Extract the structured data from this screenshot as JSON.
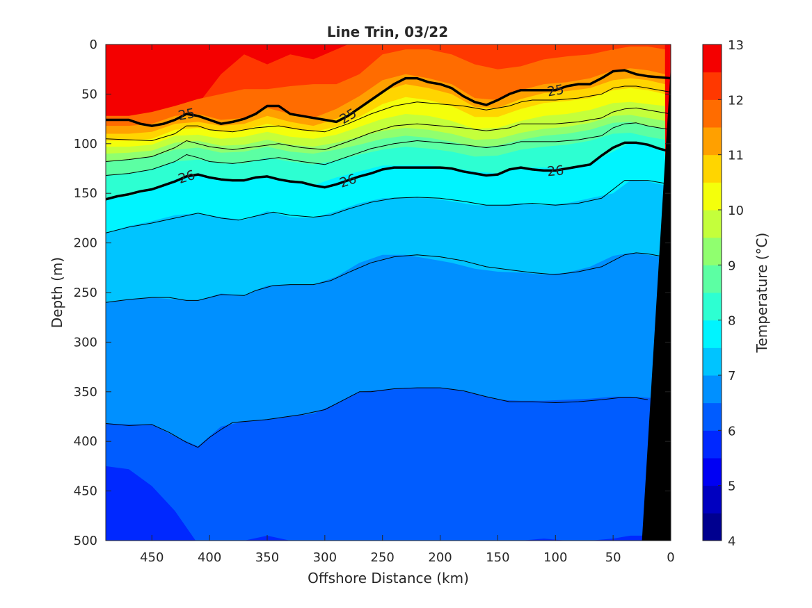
{
  "chart_data": {
    "type": "heatmap",
    "title": "Line Trin, 03/22",
    "xlabel": "Offshore Distance (km)",
    "ylabel": "Depth (m)",
    "colorbar_label": "Temperature (°C)",
    "x_range": [
      490,
      0
    ],
    "y_range": [
      0,
      500
    ],
    "x_reversed": true,
    "y_reversed": true,
    "x_ticks": [
      450,
      400,
      350,
      300,
      250,
      200,
      150,
      100,
      50,
      0
    ],
    "y_ticks": [
      0,
      50,
      100,
      150,
      200,
      250,
      300,
      350,
      400,
      450,
      500
    ],
    "colorbar_ticks": [
      4,
      5,
      6,
      7,
      8,
      9,
      10,
      11,
      12,
      13
    ],
    "colorbar_range": [
      4,
      13
    ],
    "level_step": 0.5,
    "colormap": [
      "#00008f",
      "#0000c0",
      "#0000f4",
      "#0028ff",
      "#005cff",
      "#0090ff",
      "#00c4ff",
      "#00f4ff",
      "#2dffd2",
      "#5cffa3",
      "#90ff6f",
      "#c4ff3b",
      "#f4ff0b",
      "#ffd500",
      "#ffa000",
      "#ff6c00",
      "#ff3800",
      "#f40000",
      "#bf0000"
    ],
    "grid": false,
    "shelf_color": "#000000",
    "isotherm_depths": {
      "x": [
        490,
        470,
        450,
        430,
        410,
        390,
        370,
        350,
        330,
        310,
        290,
        270,
        250,
        230,
        210,
        190,
        170,
        150,
        130,
        110,
        90,
        70,
        50,
        35,
        20,
        5
      ],
      "levels": [
        {
          "t": 12.0,
          "depth": [
            95,
            88,
            80,
            70,
            60,
            30,
            10,
            20,
            10,
            15,
            5,
            -5,
            -10,
            -20,
            -20,
            -20,
            -20,
            -25,
            -25,
            -25,
            -25,
            -25,
            -25,
            -20,
            -15,
            -10
          ]
        },
        {
          "t": 11.5,
          "depth": [
            72,
            72,
            68,
            62,
            55,
            50,
            45,
            45,
            42,
            40,
            40,
            30,
            10,
            5,
            5,
            10,
            20,
            25,
            22,
            15,
            12,
            10,
            5,
            2,
            2,
            5
          ]
        },
        {
          "t": 11.0,
          "depth": [
            82,
            82,
            80,
            72,
            70,
            76,
            74,
            64,
            70,
            74,
            65,
            52,
            36,
            30,
            34,
            40,
            54,
            56,
            46,
            40,
            38,
            34,
            26,
            24,
            26,
            30
          ]
        },
        {
          "t": 10.5,
          "depth": [
            90,
            90,
            88,
            80,
            78,
            82,
            80,
            72,
            78,
            82,
            75,
            63,
            47,
            40,
            44,
            50,
            63,
            64,
            55,
            49,
            47,
            44,
            36,
            34,
            36,
            40
          ]
        },
        {
          "t": 10.0,
          "depth": [
            97,
            97,
            95,
            86,
            84,
            88,
            86,
            80,
            85,
            88,
            83,
            73,
            60,
            53,
            56,
            62,
            73,
            73,
            65,
            59,
            57,
            54,
            46,
            44,
            46,
            50
          ]
        },
        {
          "t": 9.5,
          "depth": [
            103,
            103,
            101,
            92,
            91,
            95,
            93,
            88,
            93,
            95,
            91,
            83,
            75,
            70,
            72,
            77,
            85,
            84,
            77,
            72,
            70,
            66,
            59,
            58,
            60,
            62
          ]
        },
        {
          "t": 9.0,
          "depth": [
            110,
            109,
            107,
            99,
            97,
            102,
            101,
            96,
            101,
            103,
            99,
            93,
            87,
            84,
            86,
            90,
            96,
            95,
            89,
            85,
            83,
            79,
            72,
            71,
            74,
            77
          ]
        },
        {
          "t": 8.5,
          "depth": [
            118,
            116,
            113,
            106,
            104,
            109,
            108,
            103,
            108,
            110,
            106,
            101,
            95,
            92,
            94,
            98,
            103,
            102,
            96,
            92,
            90,
            86,
            79,
            78,
            82,
            85
          ]
        },
        {
          "t": 8.0,
          "depth": [
            132,
            130,
            126,
            118,
            116,
            120,
            120,
            114,
            118,
            121,
            117,
            111,
            106,
            103,
            105,
            108,
            113,
            112,
            106,
            103,
            101,
            97,
            90,
            89,
            93,
            96
          ]
        },
        {
          "t": 7.5,
          "depth": [
            156,
            153,
            146,
            136,
            131,
            136,
            137,
            132,
            137,
            142,
            134,
            128,
            122,
            122,
            122,
            124,
            128,
            130,
            124,
            124,
            124,
            120,
            108,
            99,
            100,
            106
          ]
        },
        {
          "t": 7.0,
          "depth": [
            190,
            183,
            178,
            172,
            170,
            174,
            177,
            168,
            174,
            175,
            168,
            160,
            155,
            154,
            155,
            158,
            162,
            162,
            160,
            162,
            160,
            155,
            150,
            137,
            138,
            142
          ]
        },
        {
          "t": 6.5,
          "depth": [
            260,
            257,
            255,
            257,
            258,
            251,
            253,
            243,
            242,
            242,
            234,
            220,
            212,
            212,
            216,
            220,
            226,
            229,
            230,
            232,
            230,
            224,
            213,
            210,
            212,
            215
          ]
        },
        {
          "t": 6.0,
          "depth": [
            382,
            383,
            383,
            395,
            405,
            385,
            380,
            378,
            375,
            372,
            362,
            350,
            348,
            346,
            346,
            347,
            352,
            358,
            359,
            359,
            358,
            357,
            355,
            355,
            356,
            357
          ]
        },
        {
          "t": 5.5,
          "depth": [
            425,
            428,
            445,
            470,
            510,
            505,
            500,
            495,
            500,
            510,
            520,
            540,
            540,
            520,
            510,
            505,
            505,
            505,
            500,
            498,
            500,
            500,
            498,
            495,
            495,
            495
          ]
        }
      ]
    },
    "contour_lines": [
      {
        "label": "25",
        "bold": true,
        "x": [
          490,
          480,
          470,
          460,
          450,
          440,
          430,
          420,
          410,
          400,
          390,
          380,
          370,
          360,
          350,
          340,
          330,
          320,
          310,
          300,
          290,
          280,
          270,
          260,
          250,
          240,
          230,
          220,
          210,
          200,
          190,
          180,
          170,
          160,
          150,
          140,
          130,
          120,
          110,
          100,
          90,
          80,
          70,
          60,
          50,
          40,
          30,
          20,
          10,
          0
        ],
        "y": [
          76,
          76,
          76,
          80,
          82,
          80,
          76,
          70,
          72,
          76,
          80,
          78,
          75,
          70,
          62,
          62,
          70,
          72,
          74,
          76,
          78,
          72,
          64,
          56,
          48,
          40,
          34,
          34,
          38,
          40,
          44,
          52,
          58,
          61,
          56,
          50,
          46,
          46,
          46,
          46,
          42,
          40,
          40,
          34,
          27,
          26,
          30,
          32,
          33,
          34
        ]
      },
      {
        "label": "26",
        "bold": true,
        "x": [
          490,
          480,
          470,
          460,
          450,
          440,
          430,
          420,
          410,
          400,
          390,
          380,
          370,
          360,
          350,
          340,
          330,
          320,
          310,
          300,
          290,
          280,
          270,
          260,
          250,
          240,
          230,
          220,
          210,
          200,
          190,
          180,
          170,
          160,
          150,
          140,
          130,
          120,
          110,
          100,
          90,
          80,
          70,
          60,
          50,
          40,
          30,
          20,
          10,
          0
        ],
        "y": [
          156,
          153,
          151,
          148,
          146,
          142,
          138,
          133,
          131,
          134,
          136,
          137,
          137,
          134,
          133,
          136,
          138,
          139,
          142,
          144,
          141,
          137,
          133,
          130,
          126,
          124,
          124,
          124,
          124,
          124,
          125,
          128,
          130,
          132,
          131,
          126,
          124,
          126,
          127,
          127,
          125,
          123,
          121,
          112,
          104,
          99,
          99,
          101,
          105,
          108
        ]
      },
      {
        "label": "",
        "bold": false,
        "x": [
          490,
          470,
          450,
          430,
          420,
          410,
          400,
          380,
          360,
          340,
          320,
          300,
          280,
          260,
          240,
          220,
          200,
          180,
          160,
          140,
          130,
          120,
          100,
          80,
          60,
          50,
          40,
          30,
          20,
          10,
          0
        ],
        "y": [
          95,
          96,
          97,
          90,
          82,
          82,
          86,
          88,
          84,
          82,
          86,
          88,
          80,
          70,
          62,
          58,
          60,
          62,
          66,
          62,
          58,
          56,
          56,
          54,
          50,
          44,
          42,
          42,
          44,
          46,
          48
        ]
      },
      {
        "label": "",
        "bold": false,
        "x": [
          490,
          470,
          450,
          430,
          420,
          410,
          400,
          380,
          360,
          340,
          320,
          300,
          280,
          260,
          240,
          220,
          200,
          180,
          160,
          140,
          130,
          120,
          100,
          80,
          60,
          50,
          40,
          30,
          20,
          10,
          0
        ],
        "y": [
          118,
          116,
          113,
          104,
          97,
          100,
          103,
          106,
          103,
          100,
          104,
          106,
          98,
          89,
          82,
          80,
          82,
          84,
          87,
          84,
          80,
          80,
          80,
          78,
          74,
          68,
          65,
          64,
          66,
          68,
          70
        ]
      },
      {
        "label": "",
        "bold": false,
        "x": [
          490,
          470,
          450,
          430,
          420,
          410,
          400,
          380,
          360,
          340,
          320,
          300,
          280,
          260,
          240,
          220,
          200,
          180,
          160,
          140,
          130,
          120,
          100,
          80,
          60,
          50,
          40,
          30,
          20,
          10,
          0
        ],
        "y": [
          132,
          130,
          126,
          118,
          111,
          114,
          118,
          120,
          117,
          114,
          118,
          121,
          113,
          105,
          100,
          97,
          99,
          101,
          104,
          101,
          98,
          98,
          98,
          96,
          92,
          84,
          80,
          79,
          82,
          84,
          86
        ]
      },
      {
        "label": "",
        "bold": false,
        "x": [
          490,
          470,
          450,
          430,
          410,
          390,
          375,
          360,
          345,
          330,
          310,
          295,
          280,
          260,
          240,
          220,
          200,
          180,
          160,
          140,
          120,
          100,
          80,
          60,
          40,
          20,
          5
        ],
        "y": [
          190,
          184,
          180,
          175,
          170,
          175,
          177,
          173,
          169,
          172,
          174,
          172,
          166,
          159,
          155,
          154,
          155,
          158,
          162,
          162,
          160,
          162,
          160,
          155,
          137,
          137,
          140
        ]
      },
      {
        "label": "",
        "bold": false,
        "x": [
          490,
          470,
          450,
          435,
          420,
          410,
          390,
          370,
          360,
          345,
          330,
          310,
          295,
          280,
          260,
          240,
          220,
          200,
          180,
          160,
          140,
          120,
          100,
          80,
          60,
          40,
          30,
          20,
          10,
          5
        ],
        "y": [
          260,
          257,
          255,
          255,
          258,
          258,
          252,
          253,
          248,
          243,
          242,
          242,
          238,
          230,
          220,
          214,
          212,
          214,
          218,
          224,
          227,
          230,
          232,
          229,
          224,
          212,
          210,
          211,
          213,
          215
        ]
      },
      {
        "label": "",
        "bold": false,
        "x": [
          490,
          470,
          450,
          435,
          420,
          410,
          400,
          390,
          380,
          370,
          350,
          320,
          300,
          280,
          270,
          260,
          240,
          220,
          200,
          180,
          160,
          140,
          120,
          100,
          80,
          60,
          45,
          30,
          20
        ],
        "y": [
          382,
          384,
          383,
          391,
          401,
          406,
          396,
          388,
          381,
          380,
          378,
          373,
          368,
          356,
          350,
          350,
          347,
          346,
          346,
          349,
          355,
          360,
          360,
          361,
          360,
          358,
          356,
          356,
          358
        ]
      }
    ],
    "shelf_polygon": {
      "x": [
        0,
        0,
        25,
        0
      ],
      "y": [
        0,
        500,
        500,
        22
      ]
    }
  }
}
